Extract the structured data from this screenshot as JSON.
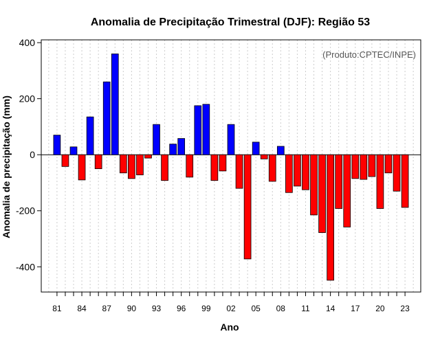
{
  "chart_data": {
    "type": "bar",
    "title": "Anomalia de Precipitação Trimestral (DJF): Região 53",
    "xlabel": "Ano",
    "ylabel": "Anomalia de precipitação (mm)",
    "credit": "(Produto:CPTEC/INPE)",
    "ylim": [
      -490,
      410
    ],
    "yticks": [
      -400,
      -200,
      0,
      200,
      400
    ],
    "xtick_labels": [
      "81",
      "84",
      "87",
      "90",
      "93",
      "96",
      "99",
      "02",
      "05",
      "08",
      "11",
      "14",
      "17",
      "20",
      "23"
    ],
    "categories": [
      "1981",
      "1982",
      "1983",
      "1984",
      "1985",
      "1986",
      "1987",
      "1988",
      "1989",
      "1990",
      "1991",
      "1992",
      "1993",
      "1994",
      "1995",
      "1996",
      "1997",
      "1998",
      "1999",
      "2000",
      "2001",
      "2002",
      "2003",
      "2004",
      "2005",
      "2006",
      "2007",
      "2008",
      "2009",
      "2010",
      "2011",
      "2012",
      "2013",
      "2014",
      "2015",
      "2016",
      "2017",
      "2018",
      "2019",
      "2020",
      "2021",
      "2022",
      "2023"
    ],
    "values": [
      70,
      -42,
      28,
      -90,
      135,
      -50,
      260,
      360,
      -65,
      -85,
      -72,
      -12,
      108,
      -92,
      38,
      58,
      -80,
      175,
      180,
      -92,
      -58,
      108,
      -120,
      -372,
      45,
      -15,
      -95,
      30,
      -135,
      -112,
      -125,
      -215,
      -278,
      -448,
      -192,
      -258,
      -85,
      -88,
      -78,
      -192,
      -65,
      -130,
      -188
    ],
    "positive_color": "#0000ff",
    "negative_color": "#ff0000",
    "grid": true
  }
}
